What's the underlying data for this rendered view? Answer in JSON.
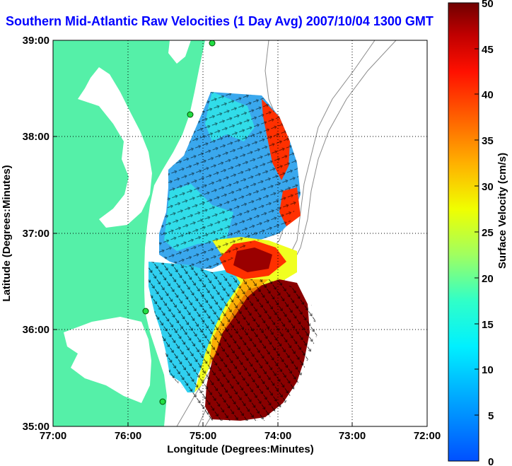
{
  "title": "Southern Mid-Atlantic Raw Velocities (1 Day Avg) 2007/10/04 1300 GMT",
  "axes": {
    "xlabel": "Longitude (Degrees:Minutes)",
    "ylabel": "Latitude (Degrees:Minutes)",
    "xticks": [
      "77:00",
      "76:00",
      "75:00",
      "74:00",
      "73:00",
      "72:00"
    ],
    "yticks": [
      "39:00",
      "38:00",
      "37:00",
      "36:00",
      "35:00"
    ]
  },
  "colorbar": {
    "label": "Surface Velocity (cm/s)",
    "ticks": [
      "50",
      "45",
      "40",
      "35",
      "30",
      "25",
      "20",
      "15",
      "10",
      "5",
      "0"
    ],
    "min": 0,
    "max": 50
  },
  "colors": {
    "land": "#55f0a8",
    "water": "#ffffff",
    "title": "#0000ff"
  }
}
